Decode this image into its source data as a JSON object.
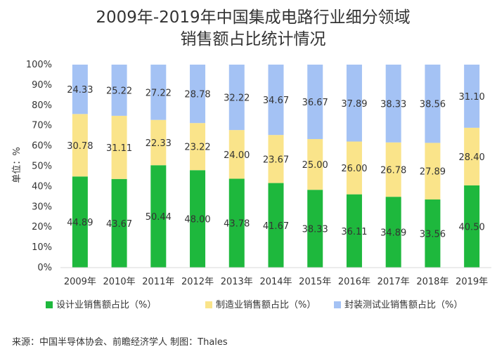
{
  "chart_data": {
    "type": "bar",
    "stacked": true,
    "percent_stacked": true,
    "title": "2009年-2019年中国集成电路行业细分领域",
    "subtitle": "销售额占比统计情况",
    "categories": [
      "2009年",
      "2010年",
      "2011年",
      "2012年",
      "2013年",
      "2014年",
      "2015年",
      "2016年",
      "2017年",
      "2018年",
      "2019年"
    ],
    "series": [
      {
        "name": "设计业销售额占比（%）",
        "color": "#1eb83d",
        "values": [
          44.89,
          43.67,
          50.44,
          48.0,
          43.78,
          41.67,
          38.33,
          36.11,
          34.89,
          33.56,
          40.5
        ]
      },
      {
        "name": "制造业销售额占比（%）",
        "color": "#fae48a",
        "values": [
          30.78,
          31.11,
          22.33,
          23.22,
          24.0,
          23.67,
          25.0,
          26.0,
          26.78,
          27.89,
          28.4
        ]
      },
      {
        "name": "封装测试业销售额占比（%）",
        "color": "#a4c2f4",
        "values": [
          24.33,
          25.22,
          27.22,
          28.78,
          32.22,
          34.67,
          36.67,
          37.89,
          38.33,
          38.56,
          31.1
        ]
      }
    ],
    "data_labels": [
      [
        "44.89",
        "43.67",
        "50.44",
        "48.00",
        "43.78",
        "41.67",
        "38.33",
        "36.11",
        "34.89",
        "33.56",
        "40.50"
      ],
      [
        "30.78",
        "31.11",
        "22.33",
        "23.22",
        "24.00",
        "23.67",
        "25.00",
        "26.00",
        "26.78",
        "27.89",
        "28.40"
      ],
      [
        "24.33",
        "25.22",
        "27.22",
        "28.78",
        "32.22",
        "34.67",
        "36.67",
        "37.89",
        "38.33",
        "38.56",
        "31.10"
      ]
    ],
    "ylim": [
      0,
      100
    ],
    "yticks": [
      "0%",
      "10%",
      "20%",
      "30%",
      "40%",
      "50%",
      "60%",
      "70%",
      "80%",
      "90%",
      "100%"
    ],
    "ylabel": "单位：%",
    "xlabel": "",
    "grid": false,
    "legend_position": "bottom"
  },
  "source": "来源：中国半导体协会、前瞻经济学人    制图：Thales"
}
